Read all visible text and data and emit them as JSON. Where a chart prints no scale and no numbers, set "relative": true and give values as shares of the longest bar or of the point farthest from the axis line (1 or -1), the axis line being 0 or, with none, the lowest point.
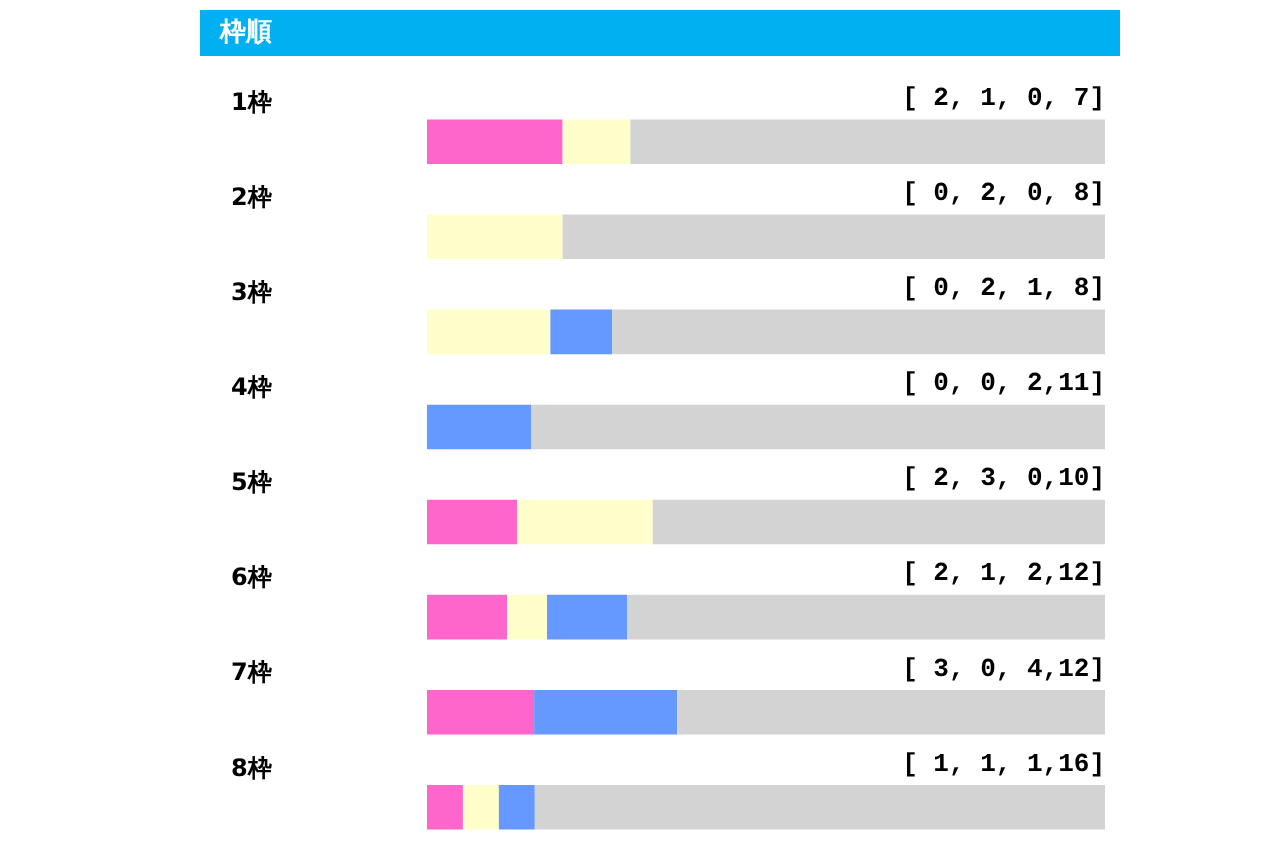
{
  "chart_data": {
    "type": "bar",
    "orientation": "horizontal",
    "stacked": true,
    "relative": true,
    "title": "枠順",
    "categories": [
      "1枠",
      "2枠",
      "3枠",
      "4枠",
      "5枠",
      "6枠",
      "7枠",
      "8枠"
    ],
    "series": [
      {
        "color": "#ff66cc",
        "values": [
          0.2,
          0,
          0,
          0,
          0.133,
          0.118,
          0.158,
          0.053
        ]
      },
      {
        "color": "#ffffcc",
        "values": [
          0.1,
          0.2,
          0.182,
          0,
          0.2,
          0.059,
          0,
          0.053
        ]
      },
      {
        "color": "#6699ff",
        "values": [
          0,
          0,
          0.091,
          0.154,
          0,
          0.118,
          0.211,
          0.053
        ]
      },
      {
        "color": "#d3d3d3",
        "values": [
          0.7,
          0.8,
          0.727,
          0.846,
          0.667,
          0.705,
          0.631,
          0.841
        ]
      }
    ],
    "annotations": [
      "[ 2, 1, 0, 7]",
      "[ 0, 2, 0, 8]",
      "[ 0, 2, 1, 8]",
      "[ 0, 0, 2,11]",
      "[ 2, 3, 0,10]",
      "[ 2, 1, 2,12]",
      "[ 3, 0, 4,12]",
      "[ 1, 1, 1,16]"
    ]
  }
}
